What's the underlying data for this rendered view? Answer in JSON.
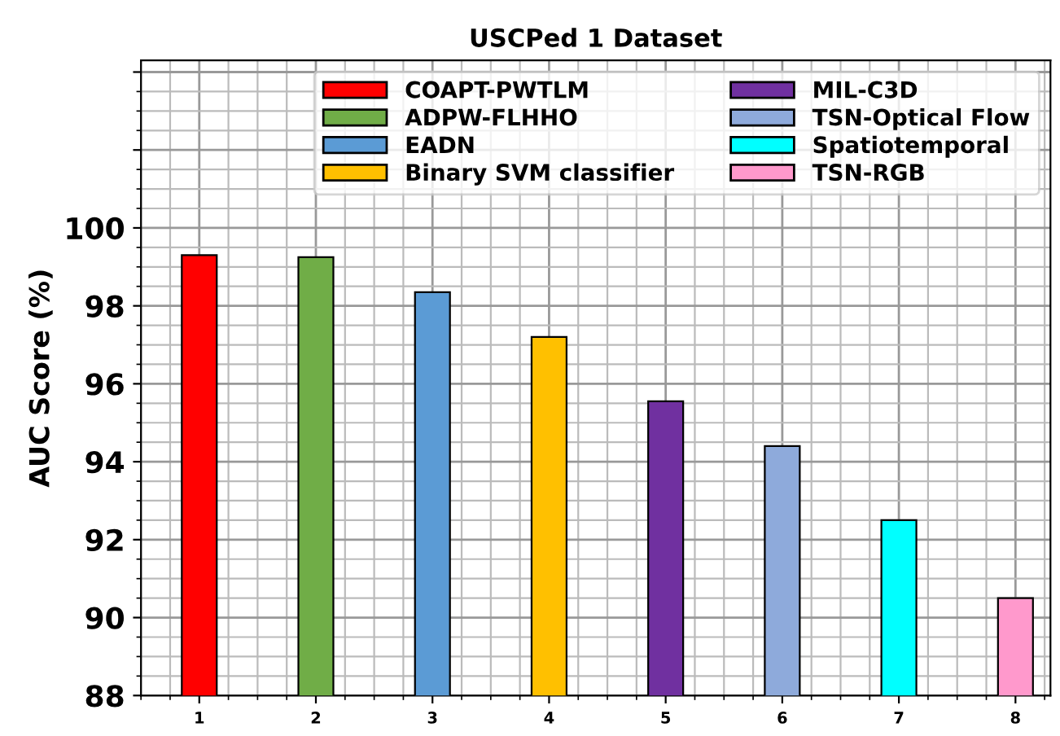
{
  "chart_data": {
    "type": "bar",
    "title": "USCPed 1 Dataset",
    "ylabel": "AUC Score (%)",
    "series": [
      {
        "name": "COAPT-PWTLM",
        "color": "#ff0000",
        "x": [
          1
        ],
        "values": [
          99.3
        ]
      },
      {
        "name": "ADPW-FLHHO",
        "color": "#70ad47",
        "x": [
          2
        ],
        "values": [
          99.25
        ]
      },
      {
        "name": "EADN",
        "color": "#5b9bd5",
        "x": [
          3
        ],
        "values": [
          98.35
        ]
      },
      {
        "name": "Binary SVM classifier",
        "color": "#ffc000",
        "x": [
          4
        ],
        "values": [
          97.2
        ]
      },
      {
        "name": "MIL-C3D",
        "color": "#7030a0",
        "x": [
          5
        ],
        "values": [
          95.55
        ]
      },
      {
        "name": "TSN-Optical Flow",
        "color": "#8eaadb",
        "x": [
          6
        ],
        "values": [
          94.4
        ]
      },
      {
        "name": "Spatiotemporal",
        "color": "#00ffff",
        "x": [
          7
        ],
        "values": [
          92.5
        ]
      },
      {
        "name": "TSN-RGB",
        "color": "#ff99cc",
        "x": [
          8
        ],
        "values": [
          90.5
        ]
      }
    ],
    "xlim": [
      0.5,
      8.3
    ],
    "xticks": [
      1,
      2,
      3,
      4,
      5,
      6,
      7,
      8
    ],
    "ylim": [
      88,
      104.3
    ],
    "yticks": [
      88,
      90,
      92,
      94,
      96,
      98,
      100,
      {
        "value": 102,
        "label": null
      },
      {
        "value": 104,
        "label": null
      }
    ],
    "grid": true,
    "legend": "top right"
  }
}
